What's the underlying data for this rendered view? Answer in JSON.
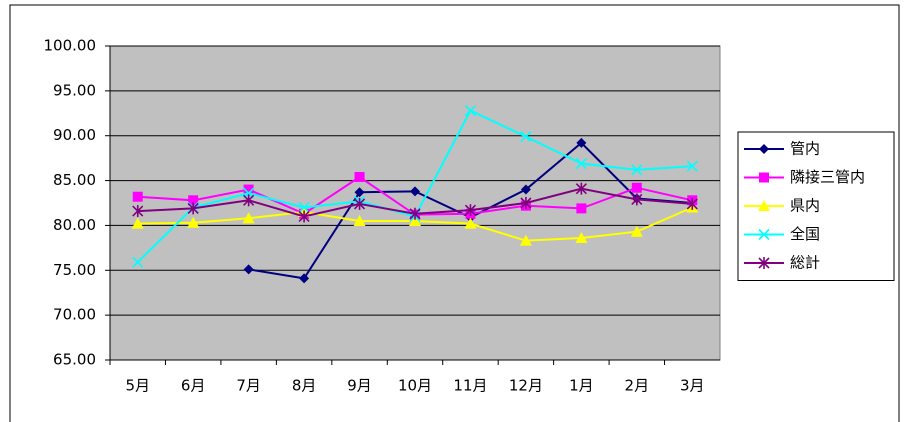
{
  "chart_data": {
    "type": "line",
    "categories": [
      "5月",
      "6月",
      "7月",
      "8月",
      "9月",
      "10月",
      "11月",
      "12月",
      "1月",
      "2月",
      "3月"
    ],
    "series": [
      {
        "name": "管内",
        "color": "#000080",
        "marker": "diamond",
        "values": [
          null,
          null,
          75.1,
          74.1,
          83.7,
          83.8,
          80.9,
          84.0,
          89.2,
          83.0,
          82.5
        ]
      },
      {
        "name": "隣接三管内",
        "color": "#ff00ff",
        "marker": "square",
        "values": [
          83.2,
          82.8,
          84.0,
          81.3,
          85.4,
          81.2,
          81.3,
          82.2,
          81.9,
          84.2,
          82.8
        ]
      },
      {
        "name": "県内",
        "color": "#ffff00",
        "marker": "triangle",
        "values": [
          80.2,
          80.3,
          80.8,
          81.5,
          80.5,
          80.5,
          80.2,
          78.3,
          78.6,
          79.3,
          82.0
        ]
      },
      {
        "name": "全国",
        "color": "#00ffff",
        "marker": "x",
        "values": [
          75.9,
          82.0,
          83.6,
          82.0,
          82.7,
          81.0,
          92.8,
          89.9,
          86.9,
          86.2,
          86.6
        ]
      },
      {
        "name": "総計",
        "color": "#800080",
        "marker": "star",
        "values": [
          81.6,
          81.9,
          82.8,
          81.0,
          82.4,
          81.3,
          81.7,
          82.5,
          84.1,
          82.9,
          82.4
        ]
      }
    ],
    "ylim": [
      65,
      100
    ],
    "yticks": [
      {
        "value": 65,
        "label": "65.00"
      },
      {
        "value": 70,
        "label": "70.00"
      },
      {
        "value": 75,
        "label": "75.00"
      },
      {
        "value": 80,
        "label": "80.00"
      },
      {
        "value": 85,
        "label": "85.00"
      },
      {
        "value": 90,
        "label": "90.00"
      },
      {
        "value": 95,
        "label": "95.00"
      },
      {
        "value": 100,
        "label": "100.00"
      }
    ],
    "grid": true,
    "legend": "right"
  }
}
